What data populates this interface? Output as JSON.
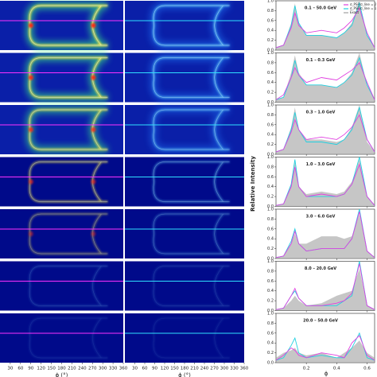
{
  "heatmaps": {
    "xlabel": "ϕ (°)",
    "xlim": [
      0,
      360
    ],
    "xticks": [
      30,
      60,
      90,
      120,
      150,
      180,
      210,
      240,
      270,
      300,
      330,
      360
    ]
  },
  "chart_data": {
    "type": "line",
    "ylabel": "Relative Intensity",
    "xlabel": "ϕ",
    "x": [
      0,
      0.05,
      0.1,
      0.125,
      0.15,
      0.2,
      0.3,
      0.4,
      0.45,
      0.5,
      0.55,
      0.6,
      0.65
    ],
    "xlim": [
      0,
      0.65
    ],
    "xticks": [
      0.2,
      0.4,
      0.6
    ],
    "ylim": [
      0,
      1.0
    ],
    "yticks": [
      {
        "value": 0,
        "label": "0.0"
      },
      0.2,
      0.4,
      0.6,
      0.8,
      {
        "value": 1.0,
        "label": "1.0"
      }
    ],
    "panels": [
      {
        "title": "0.1 – 50.0 GeV",
        "series": [
          {
            "name": "σ_PSF/σ_line = 2",
            "color": "#e040e0",
            "values": [
              0.05,
              0.1,
              0.45,
              0.75,
              0.5,
              0.35,
              0.4,
              0.35,
              0.45,
              0.6,
              0.85,
              0.35,
              0.05
            ]
          },
          {
            "name": "σ_PSF/σ_line = 1",
            "color": "#20d0e0",
            "values": [
              0.05,
              0.1,
              0.5,
              0.9,
              0.55,
              0.3,
              0.3,
              0.25,
              0.35,
              0.5,
              0.95,
              0.3,
              0.05
            ]
          },
          {
            "name": "Exact",
            "color": "#a0a0a0",
            "values": [
              0.05,
              0.1,
              0.55,
              0.95,
              0.55,
              0.3,
              0.3,
              0.25,
              0.35,
              0.55,
              1.0,
              0.3,
              0.05
            ]
          }
        ]
      },
      {
        "title": "0.1 – 0.3 GeV",
        "series": [
          {
            "name": "σ_PSF/σ_line = 2",
            "color": "#e040e0",
            "values": [
              0.05,
              0.15,
              0.5,
              0.7,
              0.55,
              0.4,
              0.5,
              0.45,
              0.55,
              0.65,
              0.8,
              0.4,
              0.05
            ]
          },
          {
            "name": "σ_PSF/σ_line = 1",
            "color": "#20d0e0",
            "values": [
              0.05,
              0.1,
              0.5,
              0.85,
              0.55,
              0.35,
              0.35,
              0.3,
              0.4,
              0.55,
              0.9,
              0.35,
              0.05
            ]
          },
          {
            "name": "Exact",
            "color": "#a0a0a0",
            "values": [
              0.05,
              0.1,
              0.6,
              0.95,
              0.6,
              0.35,
              0.35,
              0.3,
              0.4,
              0.6,
              1.0,
              0.35,
              0.05
            ]
          }
        ]
      },
      {
        "title": "0.3 – 1.0 GeV",
        "series": [
          {
            "name": "σ_PSF/σ_line = 2",
            "color": "#e040e0",
            "values": [
              0.05,
              0.1,
              0.45,
              0.7,
              0.5,
              0.3,
              0.35,
              0.3,
              0.4,
              0.55,
              0.8,
              0.3,
              0.05
            ]
          },
          {
            "name": "σ_PSF/σ_line = 1",
            "color": "#20d0e0",
            "values": [
              0.05,
              0.1,
              0.5,
              0.85,
              0.5,
              0.25,
              0.25,
              0.2,
              0.3,
              0.5,
              0.95,
              0.3,
              0.05
            ]
          },
          {
            "name": "Exact",
            "color": "#a0a0a0",
            "values": [
              0.05,
              0.1,
              0.55,
              0.95,
              0.5,
              0.3,
              0.3,
              0.25,
              0.3,
              0.55,
              1.0,
              0.25,
              0.05
            ]
          }
        ]
      },
      {
        "title": "1.0 – 3.0 GeV",
        "series": [
          {
            "name": "σ_PSF/σ_line = 2",
            "color": "#e040e0",
            "values": [
              0.02,
              0.05,
              0.4,
              0.8,
              0.4,
              0.2,
              0.25,
              0.2,
              0.25,
              0.45,
              0.85,
              0.2,
              0.02
            ]
          },
          {
            "name": "σ_PSF/σ_line = 1",
            "color": "#20d0e0",
            "values": [
              0.02,
              0.05,
              0.45,
              0.95,
              0.4,
              0.2,
              0.2,
              0.2,
              0.25,
              0.45,
              1.0,
              0.2,
              0.02
            ]
          },
          {
            "name": "Exact",
            "color": "#a0a0a0",
            "values": [
              0.02,
              0.05,
              0.45,
              0.9,
              0.4,
              0.25,
              0.3,
              0.25,
              0.3,
              0.5,
              0.95,
              0.2,
              0.02
            ]
          }
        ]
      },
      {
        "title": "3.0 – 6.0 GeV",
        "series": [
          {
            "name": "σ_PSF/σ_line = 2",
            "color": "#e040e0",
            "values": [
              0.02,
              0.05,
              0.3,
              0.55,
              0.3,
              0.15,
              0.2,
              0.2,
              0.2,
              0.4,
              0.95,
              0.15,
              0.02
            ]
          },
          {
            "name": "σ_PSF/σ_line = 1",
            "color": "#20d0e0",
            "values": [
              0.02,
              0.05,
              0.35,
              0.6,
              0.3,
              0.15,
              0.2,
              0.2,
              0.2,
              0.4,
              1.0,
              0.15,
              0.02
            ]
          },
          {
            "name": "Exact",
            "color": "#a0a0a0",
            "values": [
              0.02,
              0.05,
              0.3,
              0.5,
              0.3,
              0.3,
              0.45,
              0.45,
              0.4,
              0.45,
              0.9,
              0.15,
              0.02
            ]
          }
        ]
      },
      {
        "title": "8.0 – 20.0 GeV",
        "series": [
          {
            "name": "σ_PSF/σ_line = 2",
            "color": "#e040e0",
            "values": [
              0.02,
              0.05,
              0.3,
              0.45,
              0.25,
              0.1,
              0.1,
              0.15,
              0.2,
              0.35,
              0.95,
              0.1,
              0.02
            ]
          },
          {
            "name": "σ_PSF/σ_line = 1",
            "color": "#20d0e0",
            "values": [
              0.02,
              0.05,
              0.3,
              0.4,
              0.25,
              0.1,
              0.1,
              0.1,
              0.2,
              0.3,
              1.0,
              0.1,
              0.02
            ]
          },
          {
            "name": "Exact",
            "color": "#a0a0a0",
            "values": [
              0.02,
              0.05,
              0.2,
              0.3,
              0.2,
              0.1,
              0.15,
              0.3,
              0.35,
              0.4,
              0.85,
              0.1,
              0.02
            ]
          }
        ]
      },
      {
        "title": "20.0 – 50.0 GeV",
        "series": [
          {
            "name": "σ_PSF/σ_line = 2",
            "color": "#e040e0",
            "values": [
              0.05,
              0.15,
              0.3,
              0.25,
              0.15,
              0.1,
              0.2,
              0.15,
              0.1,
              0.4,
              0.55,
              0.15,
              0.05
            ]
          },
          {
            "name": "σ_PSF/σ_line = 1",
            "color": "#20d0e0",
            "values": [
              0.05,
              0.1,
              0.35,
              0.5,
              0.2,
              0.1,
              0.15,
              0.1,
              0.1,
              0.3,
              0.6,
              0.1,
              0.05
            ]
          },
          {
            "name": "Exact",
            "color": "#a0a0a0",
            "values": [
              0.1,
              0.2,
              0.25,
              0.3,
              0.2,
              0.15,
              0.2,
              0.1,
              0.2,
              0.3,
              0.45,
              0.2,
              0.1
            ]
          }
        ]
      }
    ]
  }
}
